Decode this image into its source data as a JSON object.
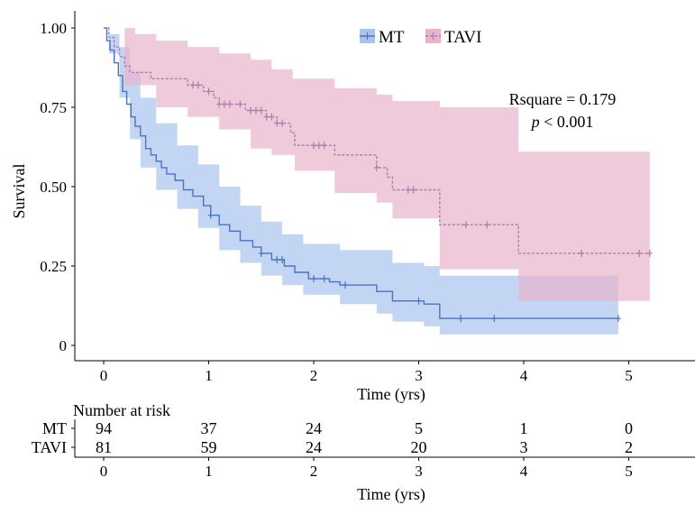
{
  "chart_data": {
    "type": "line",
    "subtype": "kaplan-meier",
    "xlabel": "Time (yrs)",
    "ylabel": "Survival",
    "xlim": [
      0,
      5.3
    ],
    "ylim": [
      0,
      1
    ],
    "x_ticks": [
      "0",
      "1",
      "2",
      "3",
      "4",
      "5"
    ],
    "y_ticks": [
      "0",
      "0.25",
      "0.50",
      "0.75",
      "1.00"
    ],
    "legend_position": "top-center",
    "stats": {
      "rsquare": "Rsquare = 0.179",
      "p_label": "p",
      "p_rest": " < 0.001"
    },
    "series": [
      {
        "name": "MT",
        "color": "#4a72cc",
        "band_color": "#a8c4f0",
        "line_style": "solid",
        "steps": [
          [
            0,
            1.0
          ],
          [
            0.03,
            0.96
          ],
          [
            0.06,
            0.93
          ],
          [
            0.1,
            0.89
          ],
          [
            0.14,
            0.85
          ],
          [
            0.18,
            0.8
          ],
          [
            0.22,
            0.76
          ],
          [
            0.26,
            0.72
          ],
          [
            0.3,
            0.69
          ],
          [
            0.35,
            0.66
          ],
          [
            0.4,
            0.62
          ],
          [
            0.45,
            0.6
          ],
          [
            0.5,
            0.58
          ],
          [
            0.55,
            0.56
          ],
          [
            0.6,
            0.54
          ],
          [
            0.68,
            0.52
          ],
          [
            0.76,
            0.49
          ],
          [
            0.85,
            0.47
          ],
          [
            0.95,
            0.44
          ],
          [
            1.02,
            0.41
          ],
          [
            1.1,
            0.38
          ],
          [
            1.2,
            0.36
          ],
          [
            1.3,
            0.33
          ],
          [
            1.42,
            0.31
          ],
          [
            1.5,
            0.29
          ],
          [
            1.6,
            0.27
          ],
          [
            1.72,
            0.25
          ],
          [
            1.82,
            0.23
          ],
          [
            1.95,
            0.21
          ],
          [
            2.15,
            0.2
          ],
          [
            2.25,
            0.19
          ],
          [
            2.6,
            0.17
          ],
          [
            2.75,
            0.14
          ],
          [
            3.05,
            0.13
          ],
          [
            3.2,
            0.085
          ],
          [
            4.9,
            0.085
          ]
        ],
        "censor_x": [
          1.02,
          1.5,
          1.65,
          1.7,
          2.0,
          2.1,
          2.3,
          3.0,
          3.4,
          3.72,
          4.9
        ],
        "ci_upper": [
          [
            0,
            1.0
          ],
          [
            0.05,
            0.98
          ],
          [
            0.15,
            0.94
          ],
          [
            0.25,
            0.86
          ],
          [
            0.35,
            0.78
          ],
          [
            0.5,
            0.7
          ],
          [
            0.7,
            0.63
          ],
          [
            0.9,
            0.57
          ],
          [
            1.1,
            0.5
          ],
          [
            1.3,
            0.44
          ],
          [
            1.5,
            0.39
          ],
          [
            1.7,
            0.35
          ],
          [
            1.9,
            0.32
          ],
          [
            2.25,
            0.3
          ],
          [
            2.6,
            0.3
          ],
          [
            2.75,
            0.26
          ],
          [
            3.05,
            0.25
          ],
          [
            3.2,
            0.22
          ],
          [
            4.9,
            0.22
          ]
        ],
        "ci_lower": [
          [
            0,
            1.0
          ],
          [
            0.05,
            0.92
          ],
          [
            0.15,
            0.78
          ],
          [
            0.25,
            0.65
          ],
          [
            0.35,
            0.56
          ],
          [
            0.5,
            0.49
          ],
          [
            0.7,
            0.43
          ],
          [
            0.9,
            0.37
          ],
          [
            1.1,
            0.3
          ],
          [
            1.3,
            0.26
          ],
          [
            1.5,
            0.22
          ],
          [
            1.7,
            0.19
          ],
          [
            1.9,
            0.16
          ],
          [
            2.25,
            0.13
          ],
          [
            2.6,
            0.1
          ],
          [
            2.75,
            0.075
          ],
          [
            3.05,
            0.06
          ],
          [
            3.2,
            0.035
          ],
          [
            4.9,
            0.035
          ]
        ]
      },
      {
        "name": "TAVI",
        "color": "#b07aaa",
        "band_color": "#e8b4cc",
        "line_style": "dashed",
        "steps": [
          [
            0,
            1.0
          ],
          [
            0.05,
            0.97
          ],
          [
            0.1,
            0.94
          ],
          [
            0.15,
            0.91
          ],
          [
            0.2,
            0.88
          ],
          [
            0.25,
            0.86
          ],
          [
            0.45,
            0.84
          ],
          [
            0.8,
            0.82
          ],
          [
            0.95,
            0.8
          ],
          [
            1.05,
            0.78
          ],
          [
            1.1,
            0.76
          ],
          [
            1.35,
            0.74
          ],
          [
            1.55,
            0.72
          ],
          [
            1.65,
            0.7
          ],
          [
            1.78,
            0.67
          ],
          [
            1.82,
            0.63
          ],
          [
            2.2,
            0.6
          ],
          [
            2.6,
            0.56
          ],
          [
            2.7,
            0.53
          ],
          [
            2.75,
            0.49
          ],
          [
            3.2,
            0.38
          ],
          [
            3.5,
            0.38
          ],
          [
            3.95,
            0.29
          ],
          [
            5.2,
            0.29
          ]
        ],
        "censor_x": [
          0.85,
          0.9,
          1.0,
          1.1,
          1.15,
          1.2,
          1.3,
          1.4,
          1.45,
          1.5,
          1.55,
          1.6,
          1.65,
          1.7,
          2.0,
          2.05,
          2.1,
          2.6,
          2.9,
          2.95,
          3.45,
          3.65,
          4.55,
          5.1,
          5.2
        ],
        "ci_upper": [
          [
            0,
            1.0
          ],
          [
            0.3,
            0.98
          ],
          [
            0.5,
            0.96
          ],
          [
            0.8,
            0.94
          ],
          [
            1.1,
            0.92
          ],
          [
            1.4,
            0.9
          ],
          [
            1.6,
            0.87
          ],
          [
            1.8,
            0.84
          ],
          [
            2.2,
            0.81
          ],
          [
            2.6,
            0.79
          ],
          [
            2.75,
            0.77
          ],
          [
            3.2,
            0.75
          ],
          [
            3.95,
            0.61
          ],
          [
            5.2,
            0.61
          ]
        ],
        "ci_lower": [
          [
            0,
            1.0
          ],
          [
            0.2,
            0.82
          ],
          [
            0.5,
            0.75
          ],
          [
            0.8,
            0.72
          ],
          [
            1.1,
            0.68
          ],
          [
            1.4,
            0.62
          ],
          [
            1.6,
            0.6
          ],
          [
            1.82,
            0.55
          ],
          [
            2.2,
            0.48
          ],
          [
            2.6,
            0.45
          ],
          [
            2.75,
            0.4
          ],
          [
            3.2,
            0.24
          ],
          [
            3.95,
            0.14
          ],
          [
            5.2,
            0.14
          ]
        ]
      }
    ]
  },
  "risk_table": {
    "title": "Number at risk",
    "x_ticks": [
      "0",
      "1",
      "2",
      "3",
      "4",
      "5"
    ],
    "xlabel": "Time (yrs)",
    "rows": [
      {
        "label": "MT",
        "values": [
          "94",
          "37",
          "24",
          "5",
          "1",
          "0"
        ]
      },
      {
        "label": "TAVI",
        "values": [
          "81",
          "59",
          "24",
          "20",
          "3",
          "2"
        ]
      }
    ]
  }
}
